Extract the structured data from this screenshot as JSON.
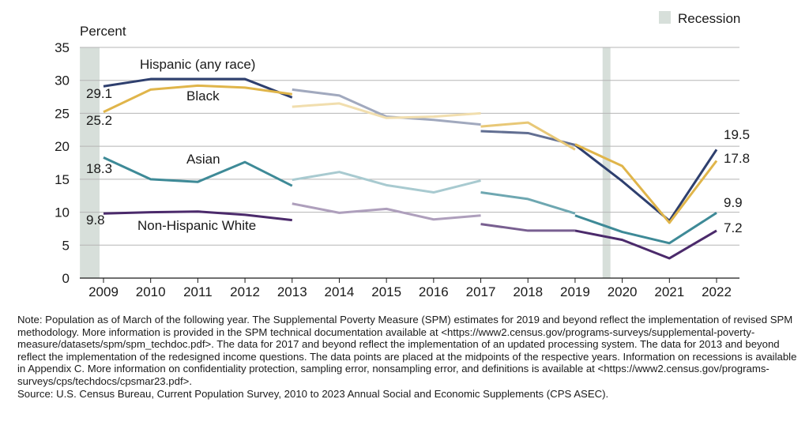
{
  "chart_data": {
    "type": "line",
    "ylabel": "Percent",
    "xlabel": "",
    "ylim": [
      0,
      35
    ],
    "yticks": [
      0,
      5,
      10,
      15,
      20,
      25,
      30,
      35
    ],
    "x": [
      "2009",
      "2010",
      "2011",
      "2012",
      "2013",
      "2014",
      "2015",
      "2016",
      "2017",
      "2018",
      "2019",
      "2020",
      "2021",
      "2022"
    ],
    "grid": "horizontal",
    "legend": {
      "position": "top-right",
      "label": "Recession"
    },
    "recession_periods": [
      {
        "start": "2009-01",
        "end": "2009-06"
      },
      {
        "start": "2020-02",
        "end": "2020-04"
      }
    ],
    "series": [
      {
        "name": "Hispanic (any race)",
        "color": "#2e3f6e",
        "segments": [
          {
            "style": "dark",
            "points": [
              [
                "2009",
                29.1
              ],
              [
                "2010",
                30.2
              ],
              [
                "2011",
                30.2
              ],
              [
                "2012",
                30.2
              ],
              [
                "2013",
                27.4
              ]
            ]
          },
          {
            "style": "light",
            "points": [
              [
                "2013",
                28.6
              ],
              [
                "2014",
                27.7
              ],
              [
                "2015",
                24.5
              ],
              [
                "2016",
                24.0
              ],
              [
                "2017",
                23.3
              ]
            ]
          },
          {
            "style": "medium",
            "points": [
              [
                "2017",
                22.3
              ],
              [
                "2018",
                22.0
              ],
              [
                "2019",
                20.2
              ]
            ]
          },
          {
            "style": "dark",
            "points": [
              [
                "2019",
                20.2
              ],
              [
                "2020",
                14.7
              ],
              [
                "2021",
                8.7
              ],
              [
                "2022",
                19.5
              ]
            ]
          }
        ]
      },
      {
        "name": "Black",
        "color": "#e0b54a",
        "segments": [
          {
            "style": "dark",
            "points": [
              [
                "2009",
                25.2
              ],
              [
                "2010",
                28.6
              ],
              [
                "2011",
                29.2
              ],
              [
                "2012",
                28.9
              ],
              [
                "2013",
                27.9
              ]
            ]
          },
          {
            "style": "light",
            "points": [
              [
                "2013",
                26.0
              ],
              [
                "2014",
                26.5
              ],
              [
                "2015",
                24.3
              ],
              [
                "2016",
                24.5
              ],
              [
                "2017",
                25.0
              ]
            ]
          },
          {
            "style": "medium",
            "points": [
              [
                "2017",
                23.0
              ],
              [
                "2018",
                23.6
              ],
              [
                "2019",
                19.5
              ]
            ]
          },
          {
            "style": "dark",
            "points": [
              [
                "2019",
                20.3
              ],
              [
                "2020",
                17.0
              ],
              [
                "2021",
                8.4
              ],
              [
                "2022",
                17.8
              ]
            ]
          }
        ]
      },
      {
        "name": "Asian",
        "color": "#3e8a97",
        "segments": [
          {
            "style": "dark",
            "points": [
              [
                "2009",
                18.3
              ],
              [
                "2010",
                15.0
              ],
              [
                "2011",
                14.6
              ],
              [
                "2012",
                17.6
              ],
              [
                "2013",
                14.0
              ]
            ]
          },
          {
            "style": "light",
            "points": [
              [
                "2013",
                14.9
              ],
              [
                "2014",
                16.1
              ],
              [
                "2015",
                14.1
              ],
              [
                "2016",
                13.0
              ],
              [
                "2017",
                14.8
              ]
            ]
          },
          {
            "style": "medium",
            "points": [
              [
                "2017",
                13.0
              ],
              [
                "2018",
                12.0
              ],
              [
                "2019",
                9.8
              ]
            ]
          },
          {
            "style": "dark",
            "points": [
              [
                "2019",
                9.5
              ],
              [
                "2020",
                7.0
              ],
              [
                "2021",
                5.3
              ],
              [
                "2022",
                9.9
              ]
            ]
          }
        ]
      },
      {
        "name": "Non-Hispanic White",
        "color": "#4b2a6b",
        "segments": [
          {
            "style": "dark",
            "points": [
              [
                "2009",
                9.8
              ],
              [
                "2010",
                10.0
              ],
              [
                "2011",
                10.1
              ],
              [
                "2012",
                9.6
              ],
              [
                "2013",
                8.8
              ]
            ]
          },
          {
            "style": "light",
            "points": [
              [
                "2013",
                11.3
              ],
              [
                "2014",
                9.9
              ],
              [
                "2015",
                10.5
              ],
              [
                "2016",
                8.9
              ],
              [
                "2017",
                9.5
              ]
            ]
          },
          {
            "style": "medium",
            "points": [
              [
                "2017",
                8.2
              ],
              [
                "2018",
                7.2
              ],
              [
                "2019",
                7.2
              ]
            ]
          },
          {
            "style": "dark",
            "points": [
              [
                "2019",
                7.2
              ],
              [
                "2020",
                5.8
              ],
              [
                "2021",
                3.0
              ],
              [
                "2022",
                7.2
              ]
            ]
          }
        ]
      }
    ],
    "series_labels": [
      {
        "text": "Hispanic (any race)",
        "series": "Hispanic (any race)"
      },
      {
        "text": "Black",
        "series": "Black"
      },
      {
        "text": "Asian",
        "series": "Asian"
      },
      {
        "text": "Non-Hispanic White",
        "series": "Non-Hispanic White"
      }
    ],
    "value_labels": [
      {
        "text": "29.1"
      },
      {
        "text": "25.2"
      },
      {
        "text": "18.3"
      },
      {
        "text": "9.8"
      },
      {
        "text": "19.5"
      },
      {
        "text": "17.8"
      },
      {
        "text": "9.9"
      },
      {
        "text": "7.2"
      }
    ]
  },
  "notes": {
    "note": "Note: Population as of March of the following year. The Supplemental Poverty Measure (SPM) estimates for 2019 and beyond reflect the implementation of revised SPM methodology. More information is provided in the SPM technical documentation available at <https://www2.census.gov/programs-surveys/supplemental-poverty-measure/datasets/spm/spm_techdoc.pdf>. The data for 2017 and beyond reflect the implementation of an updated processing system. The data for 2013 and beyond reflect the implementation of the redesigned income questions. The data points are placed at the midpoints of the respective years. Information on recessions is available in Appendix C. More information on confidentiality protection, sampling error, nonsampling error, and definitions is available at <https://www2.census.gov/programs-surveys/cps/techdocs/cpsmar23.pdf>.",
    "source": "Source: U.S. Census Bureau, Current Population Survey, 2010 to 2023 Annual Social and Economic Supplements (CPS ASEC)."
  }
}
